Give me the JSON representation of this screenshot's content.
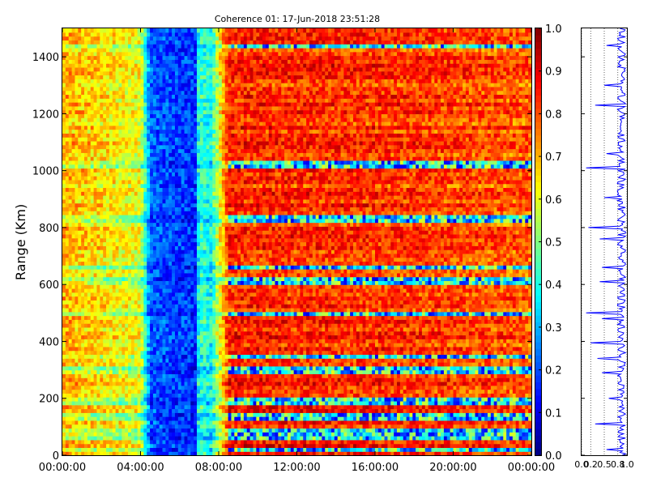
{
  "chart_data": [
    {
      "type": "heatmap",
      "title": "Coherence 01: 17-Jun-2018 23:51:28",
      "ylabel": "Range (Km)",
      "xlabel": "",
      "x_ticks": [
        "00:00:00",
        "04:00:00",
        "08:00:00",
        "12:00:00",
        "16:00:00",
        "20:00:00",
        "00:00:00"
      ],
      "x_range_hours": [
        0,
        24
      ],
      "y_ticks": [
        0,
        200,
        400,
        600,
        800,
        1000,
        1200,
        1400
      ],
      "ylim": [
        0,
        1500
      ],
      "color_range": [
        0.0,
        1.0
      ],
      "colormap": "jet",
      "time_profile_hours": [
        0,
        4.0,
        4.5,
        6.8,
        7.0,
        7.6,
        8.5,
        18.0,
        24
      ],
      "time_profile_values": [
        0.72,
        0.62,
        0.22,
        0.18,
        0.45,
        0.4,
        0.86,
        0.84,
        0.8
      ],
      "low_rows_km": [
        20,
        60,
        85,
        140,
        190,
        300,
        345,
        500,
        610,
        660,
        830,
        1020,
        1440
      ],
      "colorbar": {
        "ticks": [
          "0.0",
          "0.1",
          "0.2",
          "0.3",
          "0.4",
          "0.5",
          "0.6",
          "0.7",
          "0.8",
          "0.9",
          "1.0"
        ]
      }
    },
    {
      "type": "line",
      "title": "",
      "xlabel": "",
      "ylabel": "",
      "x_ticks": [
        "0.0",
        "0.2",
        "0.5",
        "0.8",
        "1.0"
      ],
      "xlim": [
        0,
        1
      ],
      "ylim": [
        0,
        1500
      ],
      "grid": "vertical dotted",
      "color": "#0000ff",
      "dip_points": [
        {
          "range": 20,
          "value": 0.55
        },
        {
          "range": 110,
          "value": 0.3
        },
        {
          "range": 200,
          "value": 0.6
        },
        {
          "range": 290,
          "value": 0.45
        },
        {
          "range": 340,
          "value": 0.35
        },
        {
          "range": 395,
          "value": 0.2
        },
        {
          "range": 480,
          "value": 0.45
        },
        {
          "range": 500,
          "value": 0.1
        },
        {
          "range": 610,
          "value": 0.4
        },
        {
          "range": 660,
          "value": 0.45
        },
        {
          "range": 760,
          "value": 0.4
        },
        {
          "range": 800,
          "value": 0.15
        },
        {
          "range": 905,
          "value": 0.5
        },
        {
          "range": 1010,
          "value": 0.1
        },
        {
          "range": 1060,
          "value": 0.55
        },
        {
          "range": 1230,
          "value": 0.3
        },
        {
          "range": 1300,
          "value": 0.5
        },
        {
          "range": 1440,
          "value": 0.55
        }
      ]
    }
  ]
}
